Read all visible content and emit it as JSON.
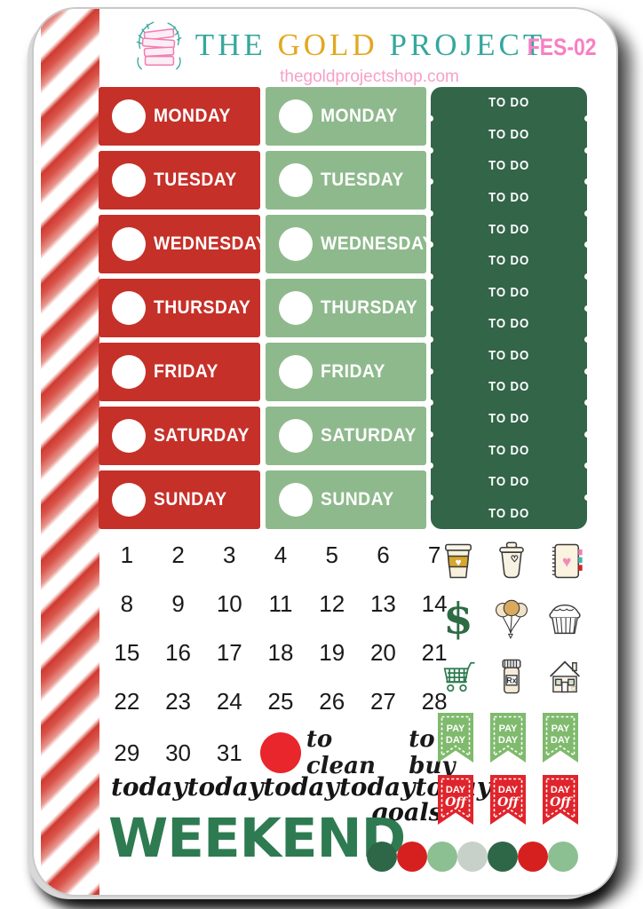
{
  "header": {
    "brand": {
      "word1": "THE",
      "word2": "GOLD",
      "word3": "PROJECT"
    },
    "subtitle": "thegoldprojectshop.com",
    "sku": "FES-02"
  },
  "day_columns": {
    "red_days": [
      "MONDAY",
      "TUESDAY",
      "WEDNESDAY",
      "THURSDAY",
      "FRIDAY",
      "SATURDAY",
      "SUNDAY"
    ],
    "green_days": [
      "MONDAY",
      "TUESDAY",
      "WEDNESDAY",
      "THURSDAY",
      "FRIDAY",
      "SATURDAY",
      "SUNDAY"
    ]
  },
  "todo_column": {
    "label": "TO DO",
    "count": 14
  },
  "calendar": {
    "dates": [
      1,
      2,
      3,
      4,
      5,
      6,
      7,
      8,
      9,
      10,
      11,
      12,
      13,
      14,
      15,
      16,
      17,
      18,
      19,
      20,
      21,
      22,
      23,
      24,
      25,
      26,
      27,
      28,
      29,
      30,
      31
    ]
  },
  "script_labels": {
    "to_clean": "to clean",
    "to_buy": "to buy",
    "today": "today",
    "today_count": 5,
    "goals": "goals"
  },
  "weekend_label": "WEEKEND",
  "flag_banners": {
    "payday": {
      "line1": "PAY",
      "line2": "DAY",
      "count": 3,
      "color": "#7fba6d"
    },
    "dayoff": {
      "line1": "DAY",
      "line2": "Off",
      "count": 3,
      "color": "#e0242b"
    }
  },
  "icons": [
    "coffee-cup",
    "tumbler",
    "notebook",
    "dollar-sign",
    "balloons",
    "laundry-basket",
    "shopping-cart",
    "rx-bottle",
    "house"
  ],
  "dot_colors": [
    "#2e6747",
    "#d6201f",
    "#8cc093",
    "#c7d1c9",
    "#2e6747",
    "#d6201f",
    "#8cc093"
  ],
  "colors": {
    "red_sticker": "#c53029",
    "green_sticker": "#8eb98c",
    "dark_green": "#336549",
    "weekend_green": "#2e7b52",
    "circle_red": "#e8262b",
    "payday_green": "#7fba6d",
    "dayoff_red": "#e0242b",
    "candy_red": "#cf3a31",
    "brand_teal": "#35a79e",
    "brand_gold": "#e2a81f",
    "brand_pink": "#f6a0c8",
    "sku_pink": "#f87fc3"
  }
}
